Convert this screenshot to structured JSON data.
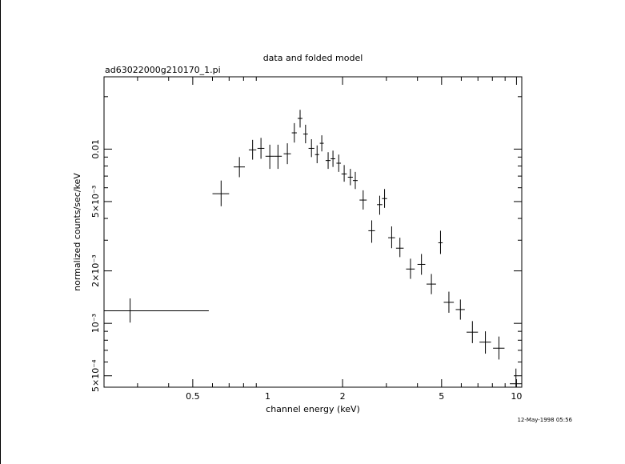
{
  "chart_data": {
    "type": "scatter",
    "title": "data and folded model",
    "subtitle": "ad63022000g210170_1.pi",
    "xlabel": "channel energy (keV)",
    "ylabel": "normalized counts/sec/keV",
    "timestamp": "12-May-1998 05:56",
    "x_scale": "log",
    "y_scale": "log",
    "xlim": [
      0.22,
      10.5
    ],
    "ylim": [
      0.00043,
      0.026
    ],
    "x_ticks": [
      {
        "value": 0.5,
        "label": "0.5"
      },
      {
        "value": 1,
        "label": "1"
      },
      {
        "value": 2,
        "label": "2"
      },
      {
        "value": 5,
        "label": "5"
      },
      {
        "value": 10,
        "label": "10"
      }
    ],
    "y_ticks": [
      {
        "value": 0.0005,
        "label": "5×10⁻⁴"
      },
      {
        "value": 0.001,
        "label": "10⁻³"
      },
      {
        "value": 0.002,
        "label": "2×10⁻³"
      },
      {
        "value": 0.005,
        "label": "5×10⁻³"
      },
      {
        "value": 0.01,
        "label": "0.01"
      }
    ],
    "grid": false,
    "series": [
      {
        "style": "crosses",
        "points": [
          {
            "x": 0.28,
            "xlo": 0.22,
            "xhi": 0.58,
            "y": 0.00118,
            "ylo": 0.00101,
            "yhi": 0.00139
          },
          {
            "x": 0.65,
            "xlo": 0.6,
            "xhi": 0.7,
            "y": 0.00555,
            "ylo": 0.0047,
            "yhi": 0.0066
          },
          {
            "x": 0.77,
            "xlo": 0.73,
            "xhi": 0.81,
            "y": 0.0079,
            "ylo": 0.0069,
            "yhi": 0.009
          },
          {
            "x": 0.87,
            "xlo": 0.84,
            "xhi": 0.9,
            "y": 0.0099,
            "ylo": 0.0087,
            "yhi": 0.0113
          },
          {
            "x": 0.94,
            "xlo": 0.91,
            "xhi": 0.97,
            "y": 0.0101,
            "ylo": 0.0088,
            "yhi": 0.0116
          },
          {
            "x": 1.02,
            "xlo": 0.98,
            "xhi": 1.06,
            "y": 0.0091,
            "ylo": 0.0077,
            "yhi": 0.0106
          },
          {
            "x": 1.1,
            "xlo": 1.06,
            "xhi": 1.14,
            "y": 0.0091,
            "ylo": 0.0077,
            "yhi": 0.0106
          },
          {
            "x": 1.2,
            "xlo": 1.16,
            "xhi": 1.24,
            "y": 0.0094,
            "ylo": 0.0082,
            "yhi": 0.0108
          },
          {
            "x": 1.28,
            "xlo": 1.25,
            "xhi": 1.31,
            "y": 0.0124,
            "ylo": 0.0109,
            "yhi": 0.0141
          },
          {
            "x": 1.35,
            "xlo": 1.32,
            "xhi": 1.38,
            "y": 0.015,
            "ylo": 0.0133,
            "yhi": 0.0168
          },
          {
            "x": 1.42,
            "xlo": 1.39,
            "xhi": 1.45,
            "y": 0.0122,
            "ylo": 0.0108,
            "yhi": 0.0138
          },
          {
            "x": 1.5,
            "xlo": 1.46,
            "xhi": 1.54,
            "y": 0.0101,
            "ylo": 0.009,
            "yhi": 0.0114
          },
          {
            "x": 1.58,
            "xlo": 1.55,
            "xhi": 1.61,
            "y": 0.0093,
            "ylo": 0.0083,
            "yhi": 0.0105
          },
          {
            "x": 1.65,
            "xlo": 1.62,
            "xhi": 1.68,
            "y": 0.0108,
            "ylo": 0.0097,
            "yhi": 0.012
          },
          {
            "x": 1.75,
            "xlo": 1.71,
            "xhi": 1.79,
            "y": 0.0086,
            "ylo": 0.0077,
            "yhi": 0.0096
          },
          {
            "x": 1.83,
            "xlo": 1.79,
            "xhi": 1.87,
            "y": 0.0088,
            "ylo": 0.0079,
            "yhi": 0.0098
          },
          {
            "x": 1.93,
            "xlo": 1.89,
            "xhi": 1.97,
            "y": 0.0083,
            "ylo": 0.0074,
            "yhi": 0.0093
          },
          {
            "x": 2.03,
            "xlo": 1.98,
            "xhi": 2.08,
            "y": 0.0072,
            "ylo": 0.0065,
            "yhi": 0.0081
          },
          {
            "x": 2.15,
            "xlo": 2.1,
            "xhi": 2.2,
            "y": 0.0069,
            "ylo": 0.0062,
            "yhi": 0.0077
          },
          {
            "x": 2.25,
            "xlo": 2.2,
            "xhi": 2.3,
            "y": 0.0066,
            "ylo": 0.0059,
            "yhi": 0.0074
          },
          {
            "x": 2.42,
            "xlo": 2.34,
            "xhi": 2.5,
            "y": 0.0051,
            "ylo": 0.0045,
            "yhi": 0.0058
          },
          {
            "x": 2.62,
            "xlo": 2.54,
            "xhi": 2.7,
            "y": 0.0034,
            "ylo": 0.0029,
            "yhi": 0.0039
          },
          {
            "x": 2.82,
            "xlo": 2.75,
            "xhi": 2.89,
            "y": 0.0048,
            "ylo": 0.0042,
            "yhi": 0.0054
          },
          {
            "x": 2.95,
            "xlo": 2.88,
            "xhi": 3.02,
            "y": 0.0052,
            "ylo": 0.0046,
            "yhi": 0.0059
          },
          {
            "x": 3.15,
            "xlo": 3.05,
            "xhi": 3.25,
            "y": 0.0031,
            "ylo": 0.0027,
            "yhi": 0.0036
          },
          {
            "x": 3.4,
            "xlo": 3.28,
            "xhi": 3.52,
            "y": 0.0027,
            "ylo": 0.0024,
            "yhi": 0.0031
          },
          {
            "x": 3.75,
            "xlo": 3.6,
            "xhi": 3.9,
            "y": 0.00205,
            "ylo": 0.0018,
            "yhi": 0.00235
          },
          {
            "x": 4.15,
            "xlo": 4.0,
            "xhi": 4.3,
            "y": 0.00218,
            "ylo": 0.0019,
            "yhi": 0.0025
          },
          {
            "x": 4.55,
            "xlo": 4.35,
            "xhi": 4.75,
            "y": 0.00168,
            "ylo": 0.00147,
            "yhi": 0.00192
          },
          {
            "x": 4.95,
            "xlo": 4.85,
            "xhi": 5.05,
            "y": 0.0029,
            "ylo": 0.0025,
            "yhi": 0.0034
          },
          {
            "x": 5.35,
            "xlo": 5.1,
            "xhi": 5.6,
            "y": 0.00132,
            "ylo": 0.00115,
            "yhi": 0.00152
          },
          {
            "x": 5.95,
            "xlo": 5.7,
            "xhi": 6.2,
            "y": 0.0012,
            "ylo": 0.00105,
            "yhi": 0.00137
          },
          {
            "x": 6.65,
            "xlo": 6.3,
            "xhi": 7.0,
            "y": 0.00089,
            "ylo": 0.00077,
            "yhi": 0.00103
          },
          {
            "x": 7.5,
            "xlo": 7.1,
            "xhi": 7.9,
            "y": 0.00078,
            "ylo": 0.00067,
            "yhi": 0.0009
          },
          {
            "x": 8.5,
            "xlo": 8.05,
            "xhi": 8.95,
            "y": 0.00072,
            "ylo": 0.00062,
            "yhi": 0.00084
          },
          {
            "x": 9.95,
            "xlo": 9.4,
            "xhi": 10.5,
            "y": 0.00045,
            "ylo": 0.0004,
            "yhi": 0.00055
          }
        ]
      }
    ]
  }
}
